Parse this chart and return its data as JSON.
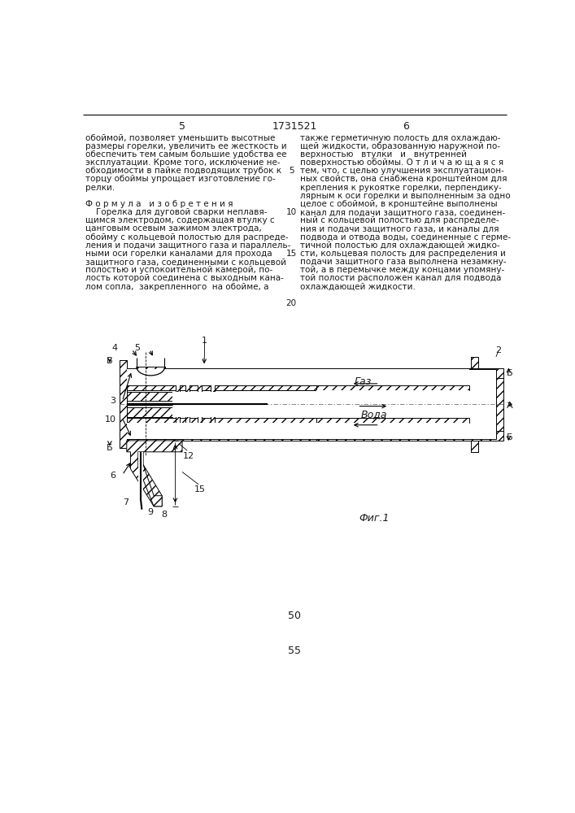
{
  "page_number_left": "5",
  "patent_number": "1731521",
  "page_number_right": "6",
  "fig_caption": "Фиг.1",
  "bottom_number_50": "50",
  "bottom_number_55": "55",
  "bg_color": "#ffffff",
  "text_color": "#1a1a1a",
  "line_color": "#000000",
  "left_col_lines": [
    "обоймой, позволяет уменьшить высотные",
    "размеры горелки, увеличить ее жесткость и",
    "обеспечить тем самым большие удобства ее",
    "эксплуатации. Кроме того, исключение не-",
    "обходимости в пайке подводящих трубок к",
    "торцу обоймы упрощает изготовление го-",
    "релки."
  ],
  "formula_header": "Ф о р м у л а   и з о б р е т е н и я",
  "formula_lines": [
    "    Горелка для дуговой сварки неплавя-",
    "щимся электродом, содержащая втулку с",
    "цанговым осевым зажимом электрода,",
    "обойму с кольцевой полостью для распреде-",
    "ления и подачи защитного газа и параллель-",
    "ными оси горелки каналами для прохода",
    "защитного газа, соединенными с кольцевой",
    "полостью и успокоительной камерой, по-",
    "лость которой соединена с выходным кана-",
    "лом сопла,  закрепленного  на обойме, а"
  ],
  "right_col_lines": [
    "также герметичную полость для охлаждаю-",
    "щей жидкости, образованную наружной по-",
    "верхностью   втулки   и   внутренней",
    "поверхностью обоймы. О т л и ч а ю щ а я с я",
    "тем, что, с целью улучшения эксплуатацион-",
    "ных свойств, она снабжена кронштейном для",
    "крепления к рукоятке горелки, перпендику-",
    "лярным к оси горелки и выполненным за одно",
    "целое с обоймой, в кронштейне выполнены",
    "канал для подачи защитного газа, соединен-",
    "ный с кольцевой полостью для распределе-",
    "ния и подачи защитного газа, и каналы для",
    "подвода и отвода воды, соединенные с герме-",
    "тичной полостью для охлаждающей жидко-",
    "сти, кольцевая полость для распределения и",
    "подачи защитного газа выполнена незамкну-",
    "той, а в перемычке между концами упомяну-",
    "той полости расположен канал для подвода",
    "охлаждающей жидкости."
  ],
  "gas_label": "Газ",
  "water_label": "Вода",
  "label_B": "Б",
  "label_A": "А"
}
